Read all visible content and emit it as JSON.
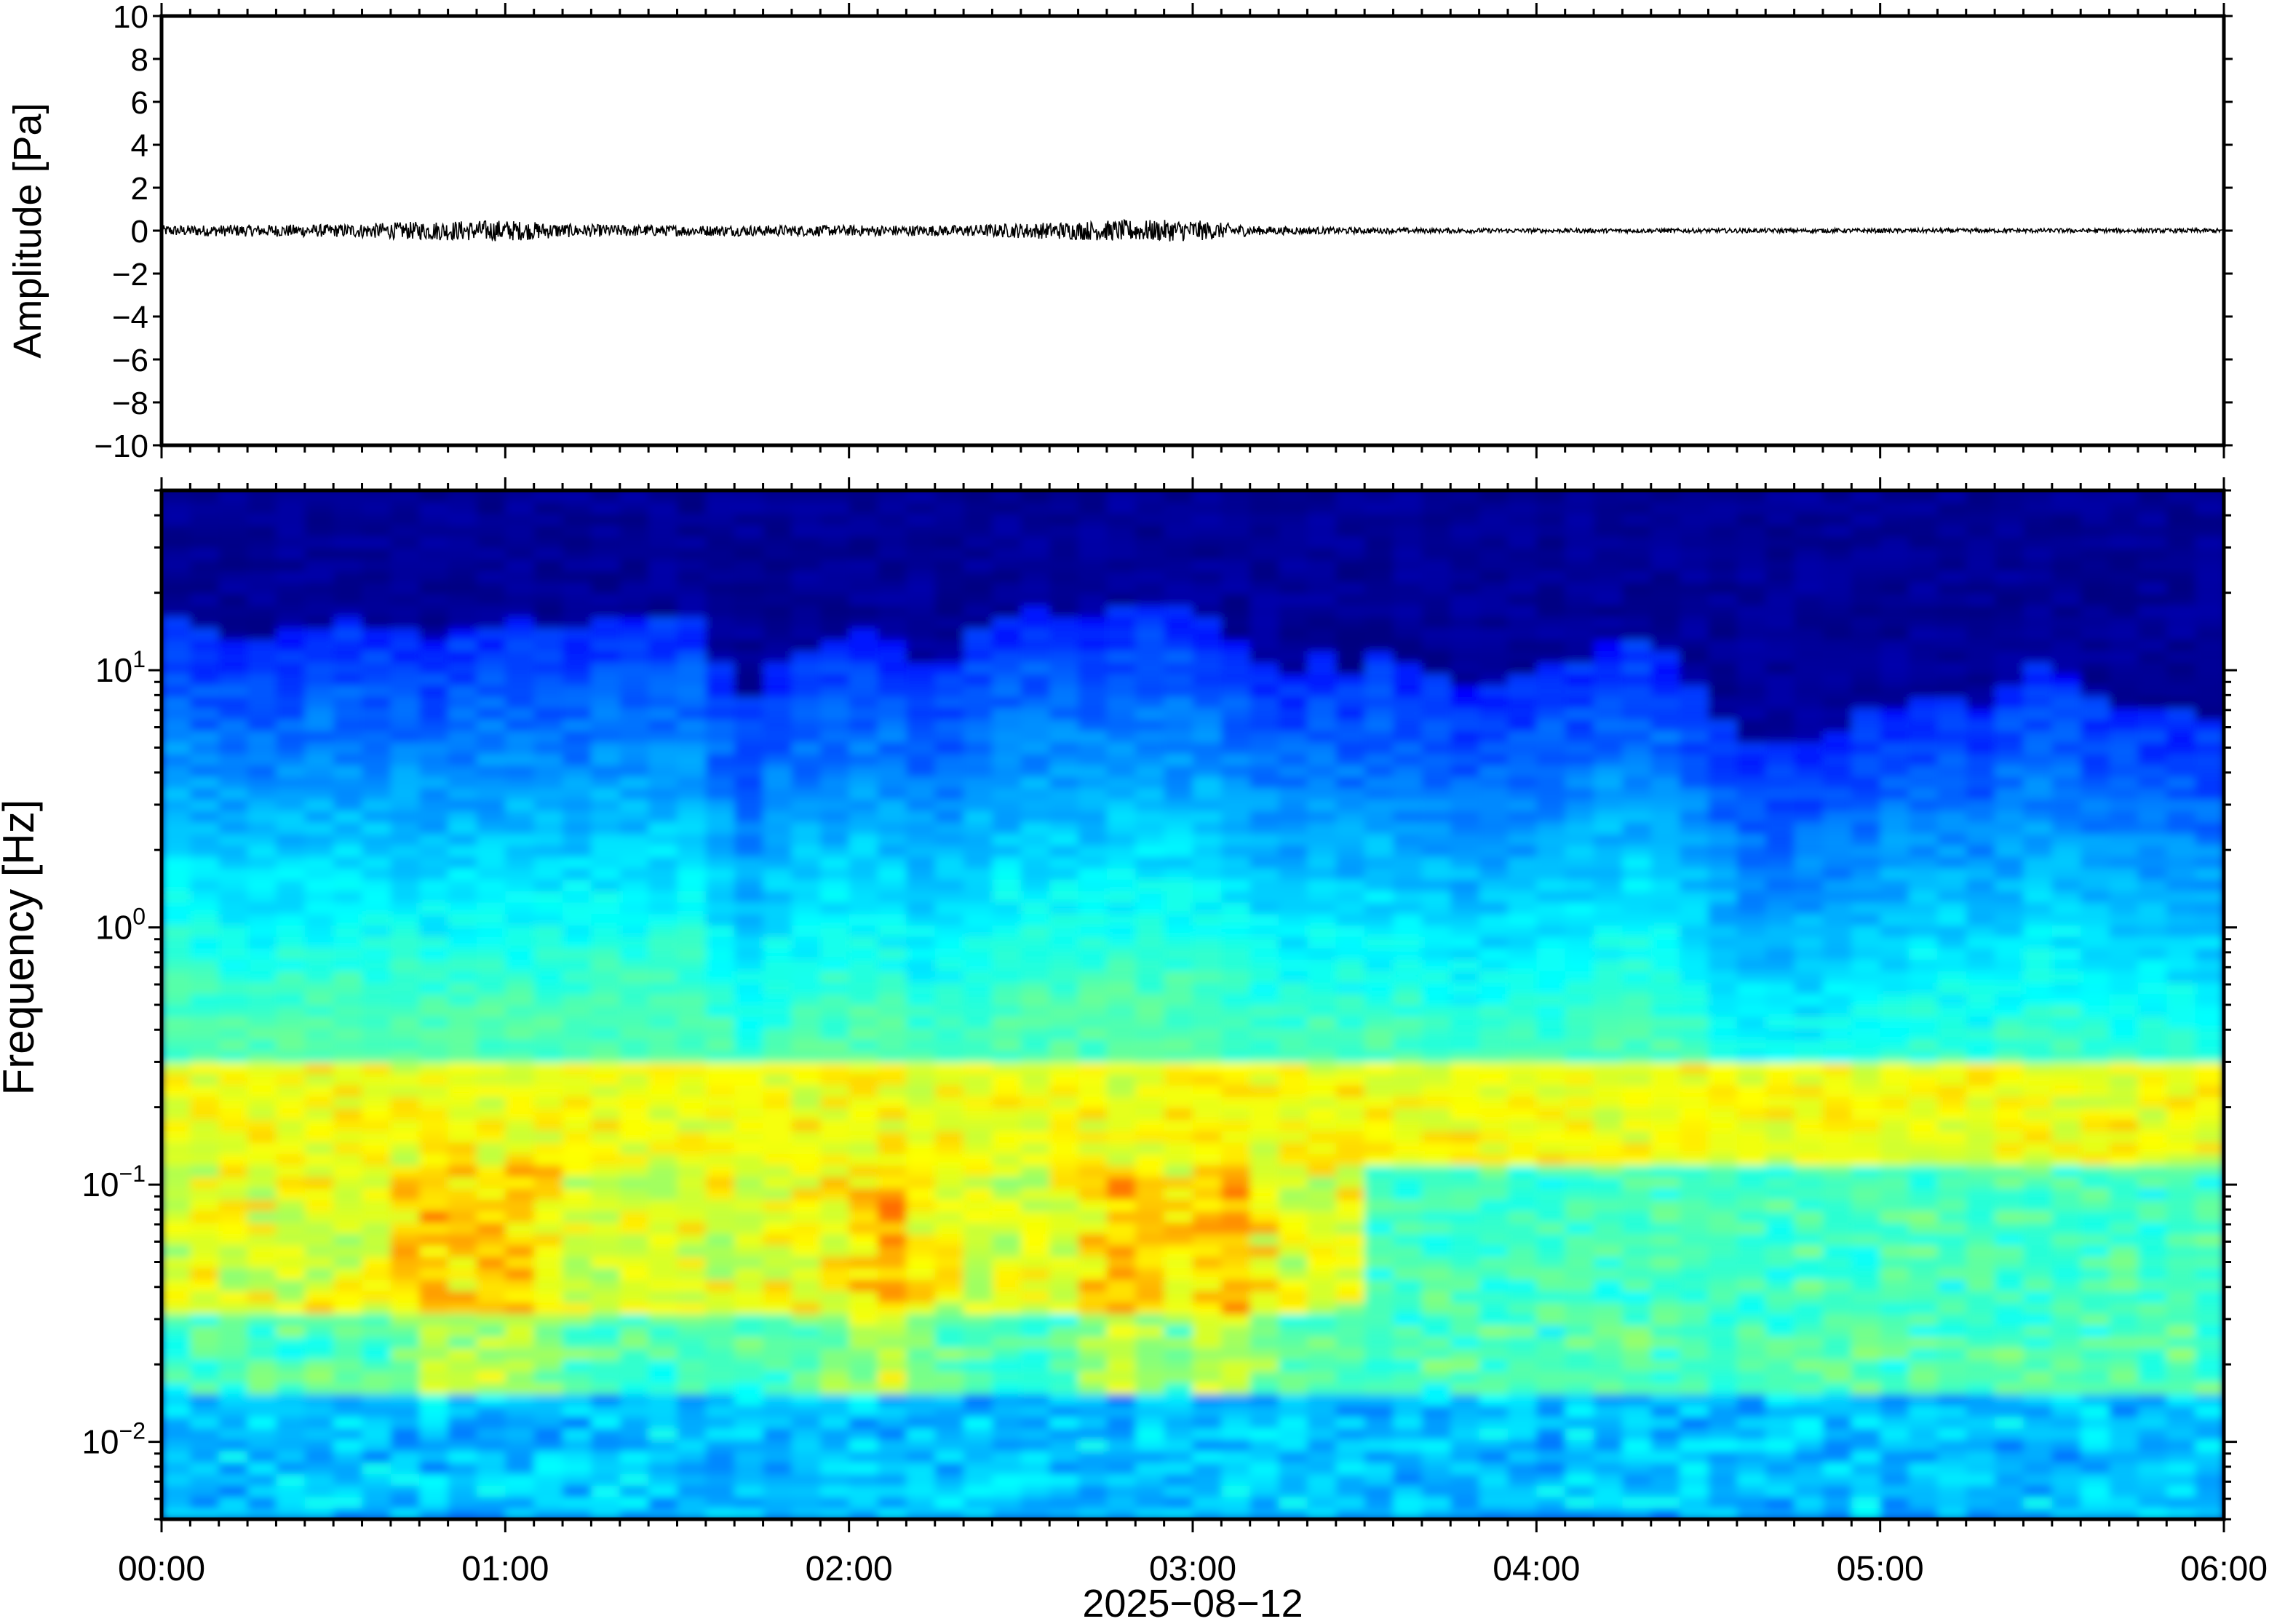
{
  "chart_data": [
    {
      "type": "line",
      "panel": "waveform",
      "ylabel": "Amplitude [Pa]",
      "ylim": [
        -10,
        10
      ],
      "yticks": [
        "10",
        "8",
        "6",
        "4",
        "2",
        "0",
        "−2",
        "−4",
        "−6",
        "−8",
        "−10"
      ],
      "ytick_values": [
        10,
        8,
        6,
        4,
        2,
        0,
        -2,
        -4,
        -6,
        -8,
        -10
      ],
      "xlim": [
        "00:00",
        "06:00"
      ],
      "series_color": "#000000",
      "noise_envelope": {
        "time_hours": [
          0,
          0.5,
          0.8,
          1.0,
          1.2,
          1.5,
          2.0,
          2.3,
          2.5,
          2.8,
          3.0,
          3.2,
          3.6,
          4.0,
          4.5,
          5.0,
          5.5,
          6.0
        ],
        "amplitude_pa": [
          0.25,
          0.3,
          0.45,
          0.5,
          0.3,
          0.25,
          0.25,
          0.25,
          0.35,
          0.5,
          0.5,
          0.2,
          0.12,
          0.1,
          0.1,
          0.1,
          0.1,
          0.1
        ]
      }
    },
    {
      "type": "heatmap",
      "panel": "spectrogram",
      "ylabel": "Frequency [Hz]",
      "yscale": "log",
      "ylim_hz": [
        0.005,
        50
      ],
      "yticks": [
        {
          "base": "10",
          "exp": "1",
          "value": 10
        },
        {
          "base": "10",
          "exp": "0",
          "value": 1
        },
        {
          "base": "10",
          "exp": "−1",
          "value": 0.1
        },
        {
          "base": "10",
          "exp": "−2",
          "value": 0.01
        }
      ],
      "xlabel": "2025−08−12",
      "xticks": [
        "00:00",
        "01:00",
        "02:00",
        "03:00",
        "04:00",
        "05:00",
        "06:00"
      ],
      "xlim": [
        "00:00",
        "06:00"
      ],
      "colormap": "jet",
      "colors": [
        "#00007f",
        "#0000ff",
        "#0080ff",
        "#00ffff",
        "#80ff80",
        "#ffff00",
        "#ff8000",
        "#ff0000"
      ],
      "upper_noise_limit_hz": {
        "time_hours": [
          0.05,
          0.35,
          0.55,
          0.75,
          0.9,
          1.05,
          1.3,
          1.55,
          1.7,
          1.9,
          2.1,
          2.25,
          2.4,
          2.6,
          2.85,
          3.05,
          3.25,
          3.45,
          3.65,
          3.85,
          4.05,
          4.25,
          4.45,
          4.65,
          4.85,
          5.05,
          5.3,
          5.5,
          5.7,
          5.95
        ],
        "frequency_hz": [
          17,
          13,
          15,
          14,
          16,
          17,
          15,
          16,
          8,
          13,
          14,
          9,
          16,
          18,
          18,
          17,
          10,
          11,
          11,
          7.5,
          10,
          14,
          9,
          5,
          5.5,
          7.5,
          7.5,
          11,
          7,
          7
        ]
      },
      "microbarom_band_hz": [
        0.12,
        0.3
      ],
      "low_frequency_energy_hours": [
        0.8,
        1.0,
        2.1,
        2.8,
        3.1
      ]
    }
  ]
}
